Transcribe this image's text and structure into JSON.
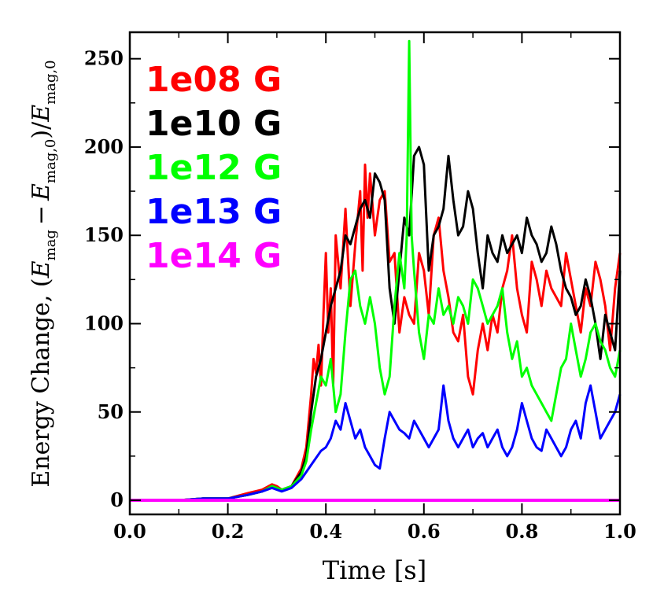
{
  "chart_data": {
    "type": "line",
    "title": "",
    "xlabel": "Time [s]",
    "ylabel": "Energy Change, (E_mag − E_mag,0)/E_mag,0",
    "ylabel_parts": {
      "lead": "Energy Change, (",
      "e1": "E",
      "s1": "mag",
      "minus": "−",
      "e2": "E",
      "s2": "mag,0",
      "mid": ")/",
      "e3": "E",
      "s3": "mag,0"
    },
    "xlim": [
      0.0,
      1.0
    ],
    "ylim": [
      -8,
      265
    ],
    "xticks": [
      "0.0",
      "0.2",
      "0.4",
      "0.6",
      "0.8",
      "1.0"
    ],
    "yticks": [
      "0",
      "50",
      "100",
      "150",
      "200",
      "250"
    ],
    "legend_position": "top-left",
    "series": [
      {
        "name": "1e08 G",
        "color": "#ff0000",
        "x": [
          0.0,
          0.05,
          0.1,
          0.15,
          0.2,
          0.24,
          0.27,
          0.29,
          0.3,
          0.31,
          0.33,
          0.35,
          0.36,
          0.37,
          0.375,
          0.38,
          0.385,
          0.39,
          0.395,
          0.4,
          0.405,
          0.41,
          0.415,
          0.42,
          0.43,
          0.44,
          0.45,
          0.46,
          0.47,
          0.475,
          0.48,
          0.485,
          0.49,
          0.5,
          0.51,
          0.52,
          0.53,
          0.54,
          0.55,
          0.56,
          0.57,
          0.58,
          0.59,
          0.6,
          0.61,
          0.62,
          0.63,
          0.64,
          0.65,
          0.66,
          0.67,
          0.68,
          0.69,
          0.7,
          0.71,
          0.72,
          0.73,
          0.74,
          0.75,
          0.76,
          0.77,
          0.78,
          0.79,
          0.8,
          0.81,
          0.82,
          0.83,
          0.84,
          0.85,
          0.86,
          0.87,
          0.88,
          0.89,
          0.9,
          0.91,
          0.92,
          0.93,
          0.94,
          0.95,
          0.96,
          0.97,
          0.98,
          0.99,
          1.0
        ],
        "y": [
          0,
          0,
          0,
          1,
          1,
          4,
          6,
          9,
          8,
          6,
          8,
          18,
          30,
          60,
          80,
          72,
          88,
          65,
          105,
          140,
          95,
          120,
          65,
          150,
          120,
          165,
          110,
          145,
          175,
          130,
          190,
          160,
          185,
          150,
          170,
          175,
          135,
          140,
          95,
          115,
          105,
          100,
          140,
          130,
          105,
          150,
          160,
          130,
          115,
          95,
          90,
          105,
          70,
          60,
          85,
          100,
          85,
          105,
          95,
          120,
          130,
          150,
          120,
          105,
          95,
          135,
          125,
          110,
          130,
          120,
          115,
          110,
          140,
          125,
          110,
          95,
          120,
          110,
          135,
          125,
          110,
          85,
          120,
          140
        ]
      },
      {
        "name": "1e10 G",
        "color": "#000000",
        "x": [
          0.0,
          0.05,
          0.1,
          0.15,
          0.2,
          0.24,
          0.27,
          0.29,
          0.3,
          0.31,
          0.33,
          0.35,
          0.36,
          0.37,
          0.38,
          0.39,
          0.4,
          0.41,
          0.42,
          0.43,
          0.44,
          0.45,
          0.46,
          0.47,
          0.48,
          0.49,
          0.5,
          0.51,
          0.52,
          0.53,
          0.54,
          0.55,
          0.56,
          0.57,
          0.58,
          0.59,
          0.6,
          0.61,
          0.62,
          0.63,
          0.64,
          0.65,
          0.66,
          0.67,
          0.68,
          0.69,
          0.7,
          0.71,
          0.72,
          0.73,
          0.74,
          0.75,
          0.76,
          0.77,
          0.78,
          0.79,
          0.8,
          0.81,
          0.82,
          0.83,
          0.84,
          0.85,
          0.86,
          0.87,
          0.88,
          0.89,
          0.9,
          0.91,
          0.92,
          0.93,
          0.94,
          0.95,
          0.96,
          0.97,
          0.98,
          0.99,
          1.0
        ],
        "y": [
          0,
          0,
          0,
          1,
          1,
          3,
          5,
          8,
          7,
          6,
          8,
          16,
          25,
          50,
          70,
          80,
          95,
          110,
          120,
          130,
          150,
          145,
          155,
          165,
          170,
          160,
          185,
          180,
          170,
          120,
          100,
          130,
          160,
          150,
          195,
          200,
          190,
          130,
          150,
          155,
          165,
          195,
          170,
          150,
          155,
          175,
          165,
          140,
          120,
          150,
          140,
          135,
          150,
          140,
          145,
          150,
          140,
          160,
          150,
          145,
          135,
          140,
          155,
          145,
          130,
          120,
          115,
          105,
          110,
          125,
          115,
          100,
          80,
          105,
          95,
          85,
          130
        ]
      },
      {
        "name": "1e12 G",
        "color": "#00ff00",
        "x": [
          0.0,
          0.05,
          0.1,
          0.15,
          0.2,
          0.24,
          0.27,
          0.29,
          0.3,
          0.31,
          0.33,
          0.35,
          0.36,
          0.37,
          0.38,
          0.39,
          0.4,
          0.41,
          0.42,
          0.43,
          0.44,
          0.45,
          0.46,
          0.47,
          0.48,
          0.49,
          0.5,
          0.51,
          0.52,
          0.53,
          0.54,
          0.55,
          0.56,
          0.565,
          0.57,
          0.575,
          0.58,
          0.59,
          0.6,
          0.61,
          0.62,
          0.63,
          0.64,
          0.65,
          0.66,
          0.67,
          0.68,
          0.69,
          0.7,
          0.71,
          0.72,
          0.73,
          0.74,
          0.75,
          0.76,
          0.77,
          0.78,
          0.79,
          0.8,
          0.81,
          0.82,
          0.83,
          0.84,
          0.85,
          0.86,
          0.87,
          0.88,
          0.89,
          0.9,
          0.91,
          0.92,
          0.93,
          0.94,
          0.95,
          0.96,
          0.97,
          0.98,
          0.99,
          1.0
        ],
        "y": [
          0,
          0,
          0,
          1,
          1,
          3,
          5,
          8,
          7,
          6,
          8,
          14,
          22,
          40,
          55,
          70,
          65,
          80,
          50,
          60,
          95,
          125,
          130,
          110,
          100,
          115,
          100,
          75,
          60,
          70,
          110,
          140,
          120,
          150,
          260,
          150,
          130,
          95,
          80,
          105,
          100,
          120,
          105,
          110,
          100,
          115,
          110,
          100,
          125,
          120,
          110,
          100,
          105,
          110,
          120,
          95,
          80,
          90,
          70,
          75,
          65,
          60,
          55,
          50,
          45,
          60,
          75,
          80,
          100,
          85,
          70,
          80,
          95,
          100,
          90,
          85,
          75,
          70,
          85
        ]
      },
      {
        "name": "1e13 G",
        "color": "#0000ff",
        "x": [
          0.0,
          0.05,
          0.1,
          0.15,
          0.2,
          0.24,
          0.27,
          0.29,
          0.3,
          0.31,
          0.33,
          0.35,
          0.37,
          0.39,
          0.4,
          0.41,
          0.42,
          0.43,
          0.44,
          0.45,
          0.46,
          0.47,
          0.48,
          0.49,
          0.5,
          0.51,
          0.52,
          0.53,
          0.54,
          0.55,
          0.56,
          0.57,
          0.58,
          0.59,
          0.6,
          0.61,
          0.62,
          0.63,
          0.64,
          0.65,
          0.66,
          0.67,
          0.68,
          0.69,
          0.7,
          0.71,
          0.72,
          0.73,
          0.74,
          0.75,
          0.76,
          0.77,
          0.78,
          0.79,
          0.8,
          0.81,
          0.82,
          0.83,
          0.84,
          0.85,
          0.86,
          0.87,
          0.88,
          0.89,
          0.9,
          0.91,
          0.92,
          0.93,
          0.94,
          0.95,
          0.96,
          0.97,
          0.98,
          0.99,
          1.0
        ],
        "y": [
          0,
          0,
          0,
          1,
          1,
          3,
          5,
          7,
          6,
          5,
          7,
          12,
          20,
          28,
          30,
          35,
          45,
          40,
          55,
          45,
          35,
          40,
          30,
          25,
          20,
          18,
          35,
          50,
          45,
          40,
          38,
          35,
          45,
          40,
          35,
          30,
          35,
          40,
          65,
          45,
          35,
          30,
          35,
          40,
          30,
          35,
          38,
          30,
          35,
          40,
          30,
          25,
          30,
          40,
          55,
          45,
          35,
          30,
          28,
          40,
          35,
          30,
          25,
          30,
          40,
          45,
          35,
          55,
          65,
          50,
          35,
          40,
          45,
          50,
          60
        ]
      },
      {
        "name": "1e14 G",
        "color": "#ff00ff",
        "x": [
          0.0,
          1.0
        ],
        "y": [
          0,
          0
        ]
      }
    ]
  }
}
